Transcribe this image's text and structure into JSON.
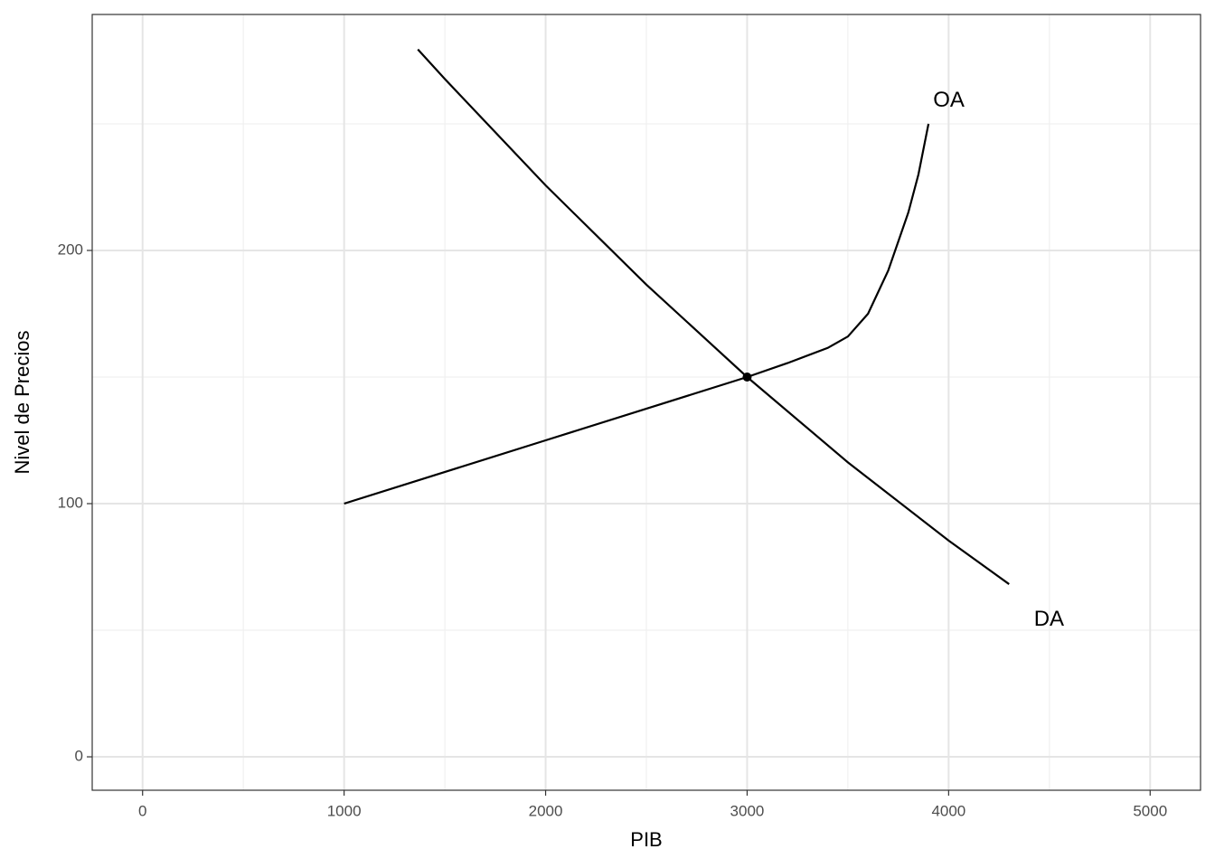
{
  "chart_data": {
    "type": "line",
    "xlabel": "PIB",
    "ylabel": "Nivel de Precios",
    "xlim": [
      -250,
      5250
    ],
    "ylim": [
      -13.2,
      293.2
    ],
    "xticks": [
      0,
      1000,
      2000,
      3000,
      4000,
      5000
    ],
    "yticks": [
      0,
      100,
      200
    ],
    "xminor": [
      500,
      1500,
      2500,
      3500,
      4500
    ],
    "yminor": [
      50,
      150,
      250
    ],
    "grid": true,
    "series": [
      {
        "name": "OA",
        "color": "#000000",
        "x": [
          1000,
          2000,
          3000,
          3200,
          3400,
          3500,
          3600,
          3700,
          3800,
          3850,
          3900
        ],
        "values": [
          100,
          125,
          150,
          155.5,
          161.5,
          166,
          175,
          192,
          215,
          230,
          250
        ]
      },
      {
        "name": "DA",
        "color": "#000000",
        "x": [
          1366,
          1500,
          2000,
          2500,
          3000,
          3500,
          4000,
          4300
        ],
        "values": [
          279.4,
          267.7,
          225.7,
          186.5,
          150,
          116.3,
          85.4,
          68.2
        ]
      }
    ],
    "points": {
      "x": [
        3000
      ],
      "values": [
        150
      ],
      "color": "#000000"
    },
    "annotations": [
      {
        "text": "OA",
        "x": 4001,
        "y": 259
      },
      {
        "text": "DA",
        "x": 4498,
        "y": 54
      }
    ]
  }
}
